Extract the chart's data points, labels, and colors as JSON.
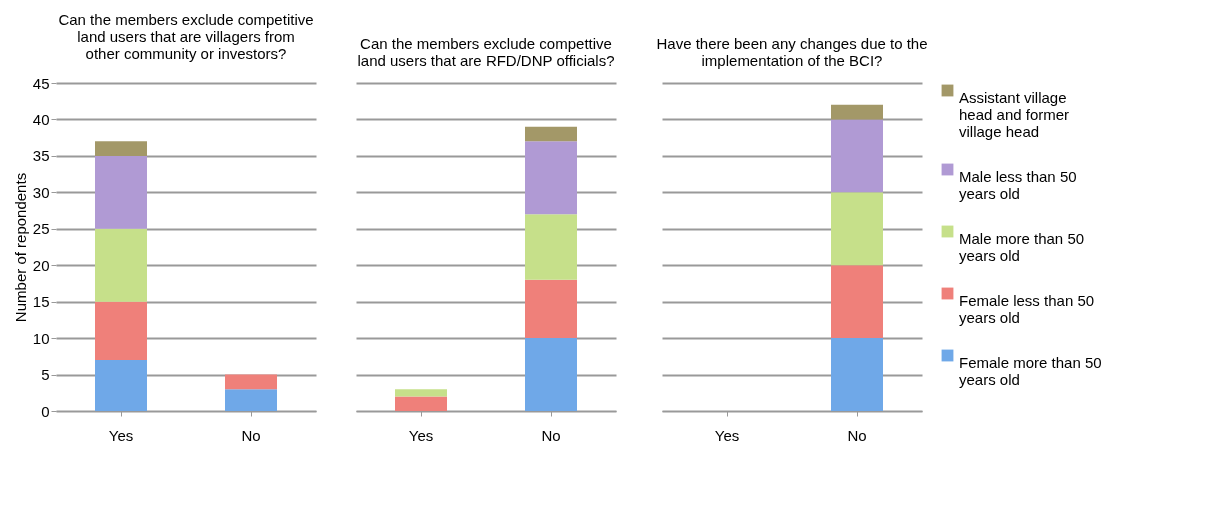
{
  "chart_data": [
    {
      "type": "bar",
      "stacked": true,
      "title": "Can the members exclude competitive land users that are villagers from other community or investors?",
      "ylabel": "Number of repondents",
      "categories": [
        "Yes",
        "No"
      ],
      "ylim": [
        0,
        45
      ],
      "yticks": [
        0,
        5,
        10,
        15,
        20,
        25,
        30,
        35,
        40,
        45
      ],
      "grid": "y",
      "series": [
        {
          "color": "#6fa8e8",
          "values": [
            7,
            3
          ]
        },
        {
          "color": "#ef807a",
          "values": [
            8,
            2
          ]
        },
        {
          "color": "#c6e08a",
          "values": [
            10,
            0
          ]
        },
        {
          "color": "#b09ad4",
          "values": [
            10,
            0
          ]
        },
        {
          "color": "#a39868",
          "values": [
            2,
            0
          ]
        }
      ]
    },
    {
      "type": "bar",
      "stacked": true,
      "title": "Can the members exclude compettive land users that are RFD/DNP officials?",
      "categories": [
        "Yes",
        "No"
      ],
      "ylim": [
        0,
        45
      ],
      "yticks": [
        0,
        5,
        10,
        15,
        20,
        25,
        30,
        35,
        40,
        45
      ],
      "grid": "y",
      "tick_labels": "x",
      "series": [
        {
          "color": "#6fa8e8",
          "values": [
            0,
            10
          ]
        },
        {
          "color": "#ef807a",
          "values": [
            2,
            8
          ]
        },
        {
          "color": "#c6e08a",
          "values": [
            1,
            9
          ]
        },
        {
          "color": "#b09ad4",
          "values": [
            0,
            10
          ]
        },
        {
          "color": "#a39868",
          "values": [
            0,
            2
          ]
        }
      ]
    },
    {
      "type": "bar",
      "stacked": true,
      "title": "Have there been any changes due to the implementation of the BCI?",
      "categories": [
        "Yes",
        "No"
      ],
      "ylim": [
        0,
        45
      ],
      "yticks": [
        0,
        5,
        10,
        15,
        20,
        25,
        30,
        35,
        40,
        45
      ],
      "grid": "y",
      "tick_labels": "x",
      "legend": "right",
      "series": [
        {
          "name": "Female more than 50 years old",
          "color": "#6fa8e8",
          "values": [
            0,
            10
          ]
        },
        {
          "name": "Female less than 50 years old",
          "color": "#ef807a",
          "values": [
            0,
            10
          ]
        },
        {
          "name": "Male more than 50 years old",
          "color": "#c6e08a",
          "values": [
            0,
            10
          ]
        },
        {
          "name": "Male less than 50 years old",
          "color": "#b09ad4",
          "values": [
            0,
            10
          ]
        },
        {
          "name": "Assistant village head and former village head",
          "color": "#a39868",
          "values": [
            0,
            2
          ]
        }
      ]
    }
  ]
}
